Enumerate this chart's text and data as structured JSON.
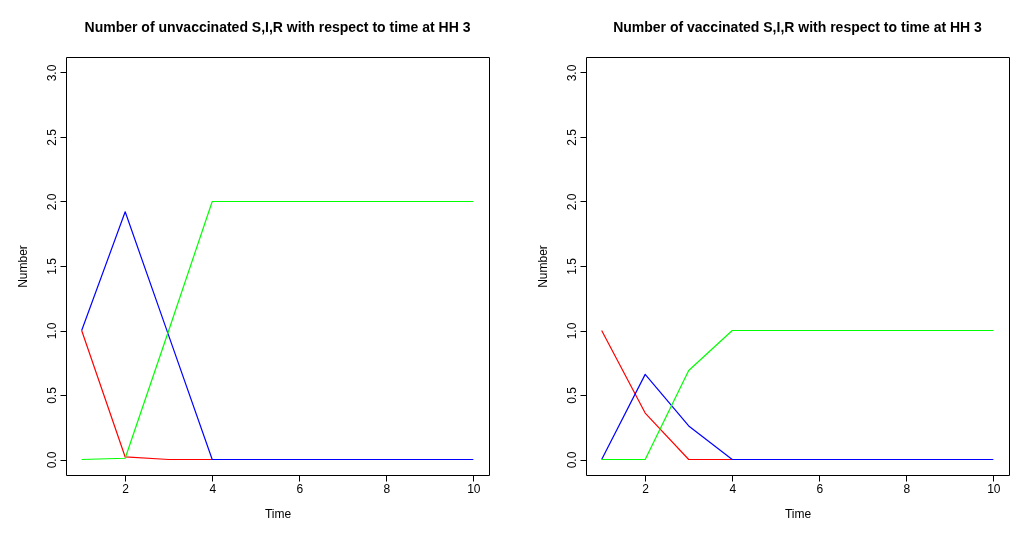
{
  "chart_data": [
    {
      "type": "line",
      "title": "Number of unvaccinated S,I,R with respect to  time at HH 3",
      "xlabel": "Time",
      "ylabel": "Number",
      "x": [
        1,
        2,
        3,
        4,
        5,
        6,
        7,
        8,
        9,
        10
      ],
      "series": [
        {
          "color": "#ff0000",
          "values": [
            1,
            0.02,
            0,
            0,
            null,
            null,
            null,
            null,
            null,
            null
          ]
        },
        {
          "color": "#0000ff",
          "values": [
            1,
            1.92,
            0.96,
            0,
            0,
            0,
            0,
            0,
            0,
            0
          ]
        },
        {
          "color": "#00ff00",
          "values": [
            0,
            0.01,
            1.0,
            2,
            2,
            2,
            2,
            2,
            2,
            2
          ]
        }
      ],
      "xlim": [
        0.64,
        10.36
      ],
      "xticks": [
        2,
        4,
        6,
        8,
        10
      ],
      "ylim": [
        -0.12,
        3.12
      ],
      "yticks": [
        {
          "value": 0,
          "label": "0.0"
        },
        0.5,
        {
          "value": 1,
          "label": "1.0"
        },
        1.5,
        {
          "value": 2,
          "label": "2.0"
        },
        2.5,
        {
          "value": 3,
          "label": "3.0"
        }
      ],
      "grid": false,
      "marker": "none",
      "line_style": "solid"
    },
    {
      "type": "line",
      "title": "Number of vaccinated S,I,R with respect to  time at HH 3",
      "xlabel": "Time",
      "ylabel": "Number",
      "x": [
        1,
        2,
        3,
        4,
        5,
        6,
        7,
        8,
        9,
        10
      ],
      "series": [
        {
          "color": "#ff0000",
          "values": [
            1,
            0.36,
            0,
            0,
            null,
            null,
            null,
            null,
            null,
            null
          ]
        },
        {
          "color": "#0000ff",
          "values": [
            0,
            0.66,
            0.26,
            0,
            0,
            0,
            0,
            0,
            0,
            0
          ]
        },
        {
          "color": "#00ff00",
          "values": [
            0,
            0,
            0.69,
            1,
            1,
            1,
            1,
            1,
            1,
            1
          ]
        }
      ],
      "xlim": [
        0.64,
        10.36
      ],
      "xticks": [
        2,
        4,
        6,
        8,
        10
      ],
      "ylim": [
        -0.12,
        3.12
      ],
      "yticks": [
        {
          "value": 0,
          "label": "0.0"
        },
        0.5,
        {
          "value": 1,
          "label": "1.0"
        },
        1.5,
        {
          "value": 2,
          "label": "2.0"
        },
        2.5,
        {
          "value": 3,
          "label": "3.0"
        }
      ],
      "grid": false,
      "marker": "none",
      "line_style": "solid"
    }
  ]
}
